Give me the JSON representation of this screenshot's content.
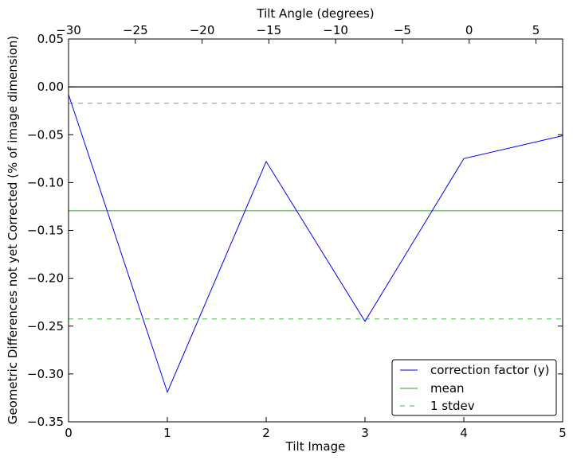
{
  "chart_data": {
    "type": "line",
    "xlabel": "Tilt Image",
    "ylabel": "Geometric Differences not yet Corrected (% of image dimension)",
    "top_xlabel": "Tilt Angle (degrees)",
    "xlim": [
      0,
      5
    ],
    "ylim": [
      -0.35,
      0.05
    ],
    "top_xlim": [
      -30,
      7
    ],
    "x_ticks": [
      "0",
      "1",
      "2",
      "3",
      "4",
      "5"
    ],
    "y_ticks": [
      "0.05",
      "0.00",
      "−0.05",
      "−0.10",
      "−0.15",
      "−0.20",
      "−0.25",
      "−0.30",
      "−0.35"
    ],
    "top_ticks": [
      "−30",
      "−25",
      "−20",
      "−15",
      "−10",
      "−5",
      "0",
      "5"
    ],
    "grid": false,
    "legend_position": "lower-right",
    "zero_line": 0,
    "series": [
      {
        "name": "correction factor (y)",
        "color": "#0000ff",
        "style": "solid",
        "x": [
          0,
          1,
          2,
          3,
          4,
          5
        ],
        "y": [
          -0.008,
          -0.319,
          -0.078,
          -0.245,
          -0.075,
          -0.051
        ]
      },
      {
        "name": "mean",
        "color": "#3a9a3a",
        "style": "solid",
        "y_const": -0.1295
      },
      {
        "name": "1 stdev",
        "color": "#4cbb4c",
        "style": "dashed",
        "y_consts": [
          -0.0172,
          -0.2425
        ]
      }
    ]
  }
}
